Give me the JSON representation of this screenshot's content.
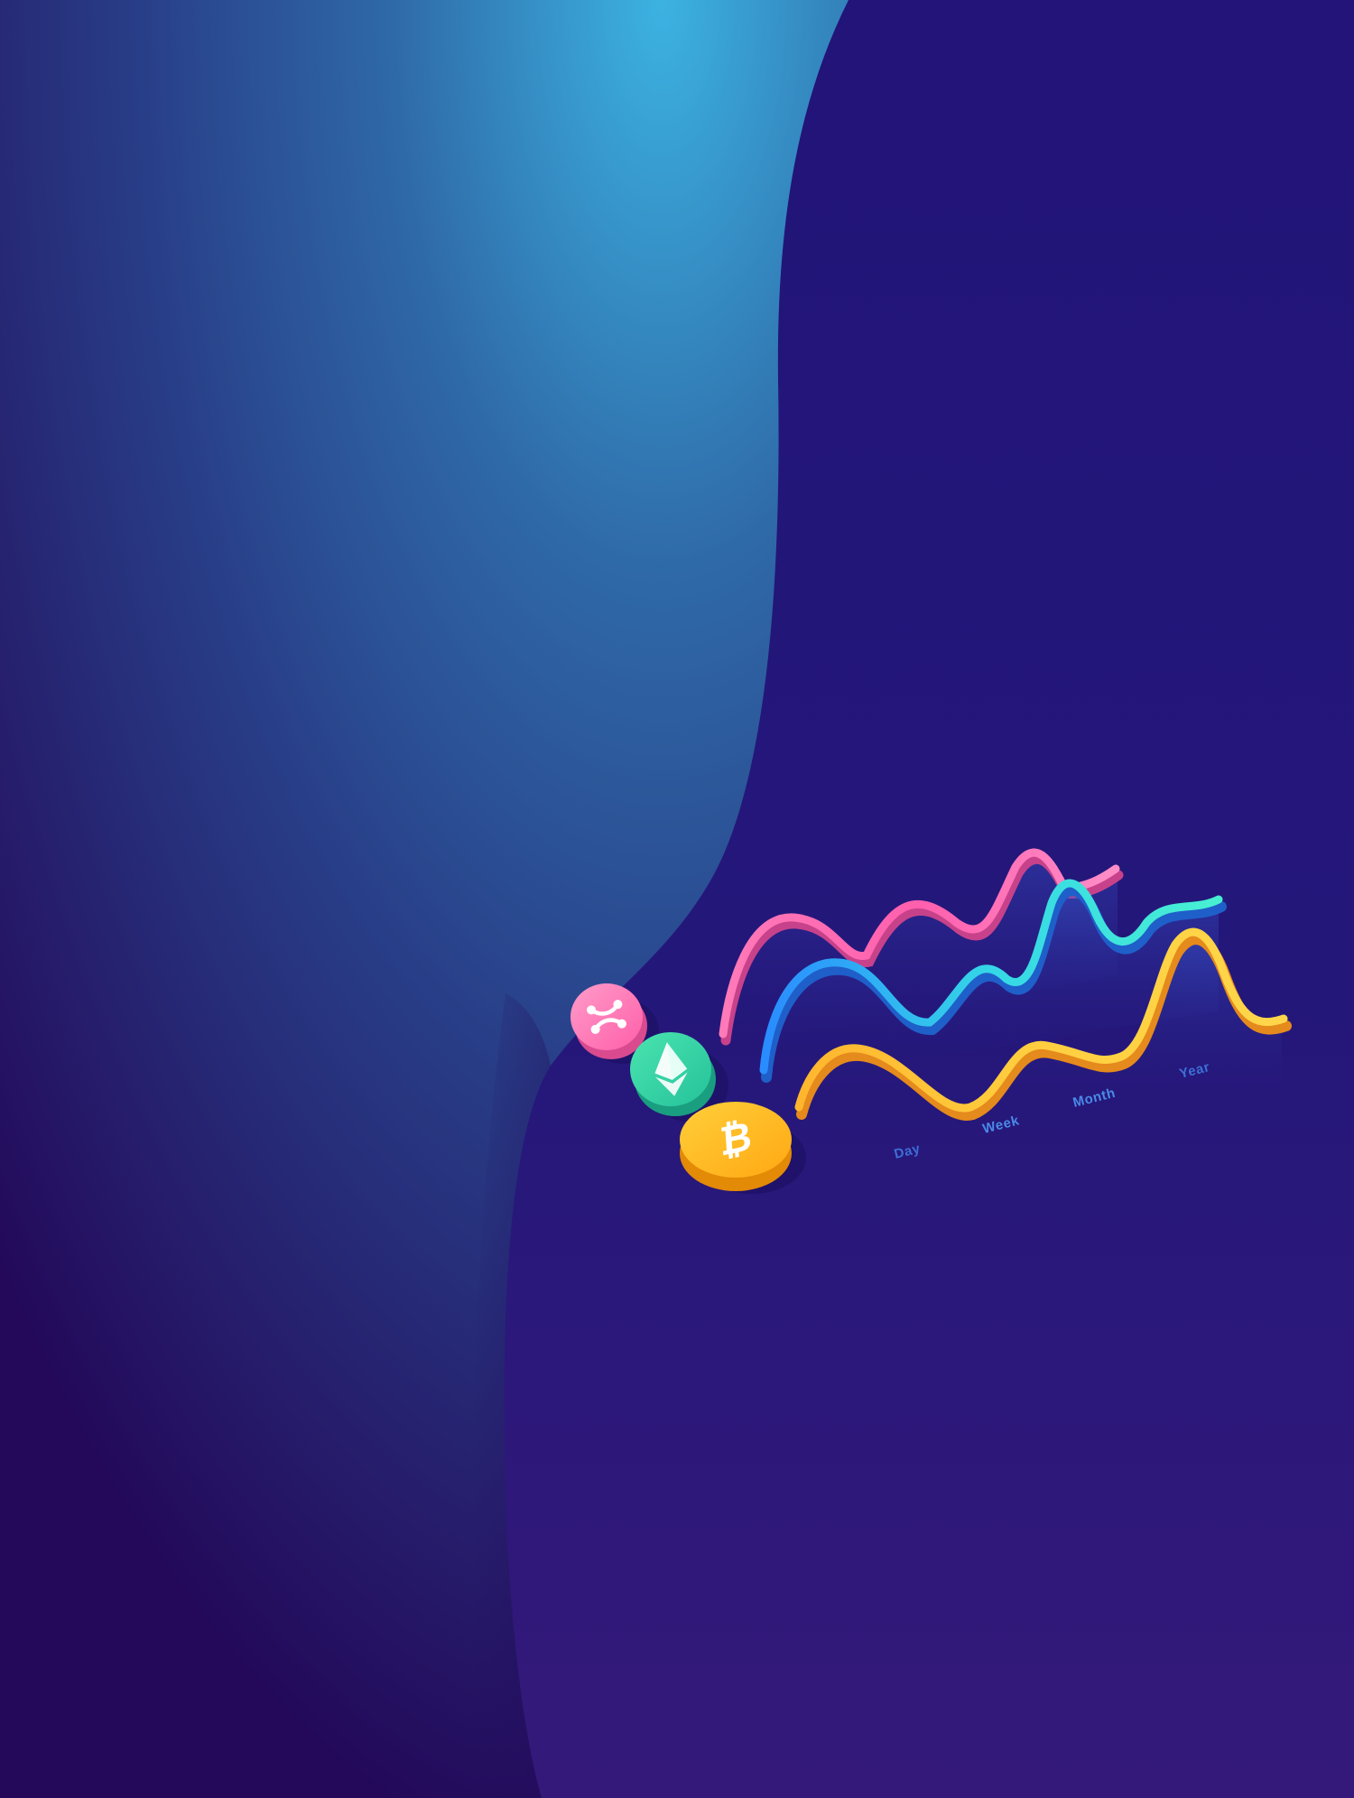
{
  "colors": {
    "panel_background": "#221478",
    "panel_bottom": "#32197a",
    "wave_light": "#39a8dc",
    "wave_mid": "#2f5596",
    "wave_dark": "#230a58",
    "ribbon_pink": "#ff6fb3",
    "ribbon_teal": "#3ee8d8",
    "ribbon_gold": "#ffc93a",
    "label_blue": "#4a7fe0",
    "coin_ripple": "#ff7bbd",
    "coin_ethereum": "#2fd6a2",
    "coin_bitcoin": "#ffb71a"
  },
  "coins": [
    {
      "name": "ripple",
      "icon": "ripple-icon"
    },
    {
      "name": "ethereum",
      "icon": "ethereum-icon"
    },
    {
      "name": "bitcoin",
      "icon": "bitcoin-icon"
    }
  ],
  "period_labels": {
    "day": "Day",
    "week": "Week",
    "month": "Month",
    "year": "Year"
  }
}
